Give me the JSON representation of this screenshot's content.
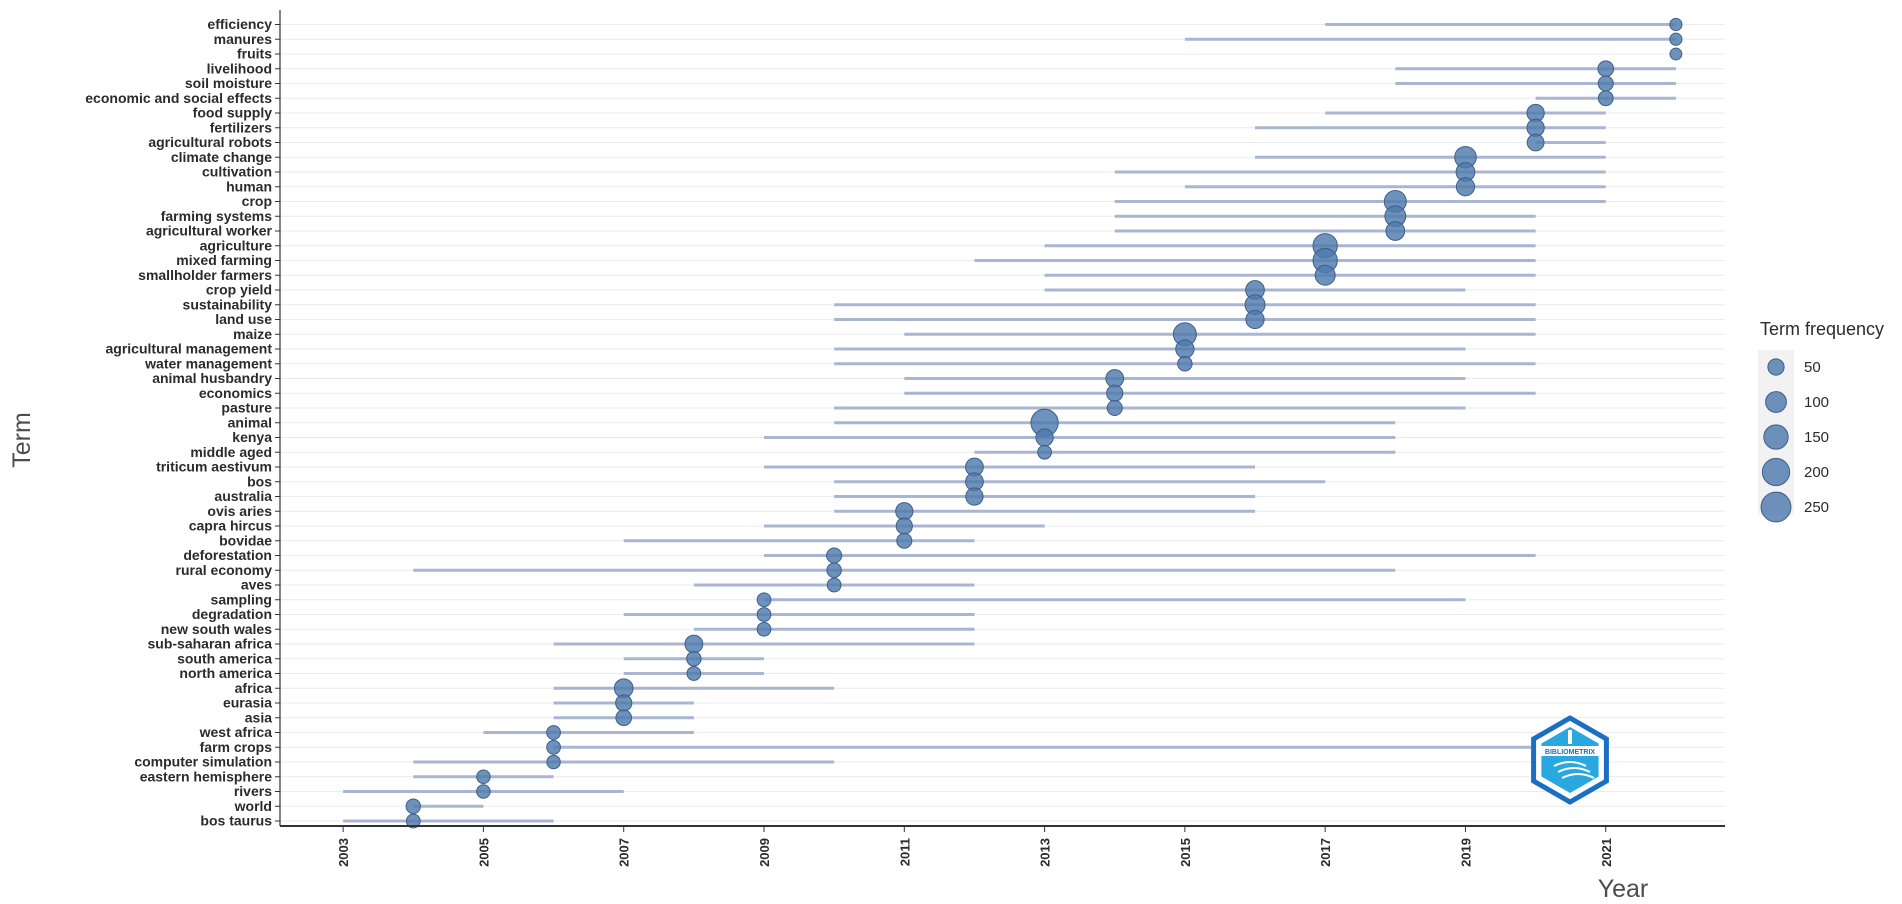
{
  "chart_data": {
    "type": "scatter",
    "title": "",
    "xlabel": "Year",
    "ylabel": "Term",
    "x_ticks": [
      2003,
      2005,
      2007,
      2009,
      2011,
      2013,
      2015,
      2017,
      2019,
      2021
    ],
    "xlim": [
      2002.1,
      2022.7
    ],
    "grid": "horizontal",
    "legend": {
      "title": "Term frequency",
      "placement": "right",
      "sizes": [
        50,
        100,
        150,
        200,
        250
      ]
    },
    "colors": {
      "point": "#4e7aac",
      "range": "#a9b5d1",
      "grid": "#ebebeb",
      "axis": "#333333"
    },
    "logo": {
      "icon": "bibliometrix-hexagon-icon",
      "text": "BIBLIOMETRIX"
    },
    "terms": [
      {
        "term": "efficiency",
        "start": 2017,
        "end": 2022,
        "median": 2022,
        "freq": 20
      },
      {
        "term": "manures",
        "start": 2015,
        "end": 2022,
        "median": 2022,
        "freq": 20
      },
      {
        "term": "fruits",
        "start": 2022,
        "end": 2022,
        "median": 2022,
        "freq": 18
      },
      {
        "term": "livelihood",
        "start": 2018,
        "end": 2022,
        "median": 2021,
        "freq": 45
      },
      {
        "term": "soil moisture",
        "start": 2018,
        "end": 2022,
        "median": 2021,
        "freq": 40
      },
      {
        "term": "economic and social effects",
        "start": 2020,
        "end": 2022,
        "median": 2021,
        "freq": 38
      },
      {
        "term": "food supply",
        "start": 2017,
        "end": 2021,
        "median": 2020,
        "freq": 60
      },
      {
        "term": "fertilizers",
        "start": 2016,
        "end": 2021,
        "median": 2020,
        "freq": 60
      },
      {
        "term": "agricultural robots",
        "start": 2020,
        "end": 2021,
        "median": 2020,
        "freq": 55
      },
      {
        "term": "climate change",
        "start": 2016,
        "end": 2021,
        "median": 2019,
        "freq": 110
      },
      {
        "term": "cultivation",
        "start": 2014,
        "end": 2021,
        "median": 2019,
        "freq": 75
      },
      {
        "term": "human",
        "start": 2015,
        "end": 2021,
        "median": 2019,
        "freq": 70
      },
      {
        "term": "crop",
        "start": 2014,
        "end": 2021,
        "median": 2018,
        "freq": 115
      },
      {
        "term": "farming systems",
        "start": 2014,
        "end": 2020,
        "median": 2018,
        "freq": 100
      },
      {
        "term": "agricultural worker",
        "start": 2014,
        "end": 2020,
        "median": 2018,
        "freq": 75
      },
      {
        "term": "agriculture",
        "start": 2013,
        "end": 2020,
        "median": 2017,
        "freq": 150
      },
      {
        "term": "mixed farming",
        "start": 2012,
        "end": 2020,
        "median": 2017,
        "freq": 150
      },
      {
        "term": "smallholder farmers",
        "start": 2013,
        "end": 2020,
        "median": 2017,
        "freq": 90
      },
      {
        "term": "crop yield",
        "start": 2013,
        "end": 2019,
        "median": 2016,
        "freq": 75
      },
      {
        "term": "sustainability",
        "start": 2010,
        "end": 2020,
        "median": 2016,
        "freq": 90
      },
      {
        "term": "land use",
        "start": 2010,
        "end": 2020,
        "median": 2016,
        "freq": 70
      },
      {
        "term": "maize",
        "start": 2011,
        "end": 2020,
        "median": 2015,
        "freq": 130
      },
      {
        "term": "agricultural management",
        "start": 2010,
        "end": 2019,
        "median": 2015,
        "freq": 70
      },
      {
        "term": "water management",
        "start": 2010,
        "end": 2020,
        "median": 2015,
        "freq": 35
      },
      {
        "term": "animal husbandry",
        "start": 2011,
        "end": 2019,
        "median": 2014,
        "freq": 65
      },
      {
        "term": "economics",
        "start": 2011,
        "end": 2020,
        "median": 2014,
        "freq": 50
      },
      {
        "term": "pasture",
        "start": 2010,
        "end": 2019,
        "median": 2014,
        "freq": 40
      },
      {
        "term": "animal",
        "start": 2010,
        "end": 2018,
        "median": 2013,
        "freq": 200
      },
      {
        "term": "kenya",
        "start": 2009,
        "end": 2018,
        "median": 2013,
        "freq": 60
      },
      {
        "term": "middle aged",
        "start": 2012,
        "end": 2018,
        "median": 2013,
        "freq": 30
      },
      {
        "term": "triticum aestivum",
        "start": 2009,
        "end": 2016,
        "median": 2012,
        "freq": 65
      },
      {
        "term": "bos",
        "start": 2010,
        "end": 2017,
        "median": 2012,
        "freq": 65
      },
      {
        "term": "australia",
        "start": 2010,
        "end": 2016,
        "median": 2012,
        "freq": 60
      },
      {
        "term": "ovis aries",
        "start": 2010,
        "end": 2016,
        "median": 2011,
        "freq": 60
      },
      {
        "term": "capra hircus",
        "start": 2009,
        "end": 2013,
        "median": 2011,
        "freq": 50
      },
      {
        "term": "bovidae",
        "start": 2007,
        "end": 2012,
        "median": 2011,
        "freq": 40
      },
      {
        "term": "deforestation",
        "start": 2009,
        "end": 2020,
        "median": 2010,
        "freq": 40
      },
      {
        "term": "rural economy",
        "start": 2004,
        "end": 2018,
        "median": 2010,
        "freq": 35
      },
      {
        "term": "aves",
        "start": 2008,
        "end": 2012,
        "median": 2010,
        "freq": 30
      },
      {
        "term": "sampling",
        "start": 2009,
        "end": 2019,
        "median": 2009,
        "freq": 30
      },
      {
        "term": "degradation",
        "start": 2007,
        "end": 2012,
        "median": 2009,
        "freq": 30
      },
      {
        "term": "new south wales",
        "start": 2008,
        "end": 2012,
        "median": 2009,
        "freq": 30
      },
      {
        "term": "sub-saharan africa",
        "start": 2006,
        "end": 2012,
        "median": 2008,
        "freq": 65
      },
      {
        "term": "south america",
        "start": 2007,
        "end": 2009,
        "median": 2008,
        "freq": 35
      },
      {
        "term": "north america",
        "start": 2007,
        "end": 2009,
        "median": 2008,
        "freq": 30
      },
      {
        "term": "africa",
        "start": 2006,
        "end": 2010,
        "median": 2007,
        "freq": 75
      },
      {
        "term": "eurasia",
        "start": 2006,
        "end": 2008,
        "median": 2007,
        "freq": 50
      },
      {
        "term": "asia",
        "start": 2006,
        "end": 2008,
        "median": 2007,
        "freq": 45
      },
      {
        "term": "west africa",
        "start": 2005,
        "end": 2008,
        "median": 2006,
        "freq": 30
      },
      {
        "term": "farm crops",
        "start": 2006,
        "end": 2021,
        "median": 2006,
        "freq": 30
      },
      {
        "term": "computer simulation",
        "start": 2004,
        "end": 2010,
        "median": 2006,
        "freq": 28
      },
      {
        "term": "eastern hemisphere",
        "start": 2004,
        "end": 2006,
        "median": 2005,
        "freq": 28
      },
      {
        "term": "rivers",
        "start": 2003,
        "end": 2007,
        "median": 2005,
        "freq": 28
      },
      {
        "term": "world",
        "start": 2004,
        "end": 2005,
        "median": 2004,
        "freq": 35
      },
      {
        "term": "bos taurus",
        "start": 2003,
        "end": 2006,
        "median": 2004,
        "freq": 30
      }
    ]
  }
}
